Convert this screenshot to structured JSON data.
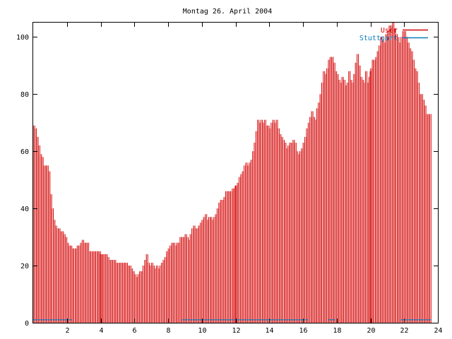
{
  "chart_data": {
    "type": "bar",
    "title": "Montag 26. April 2004",
    "xlabel": "",
    "ylabel": "",
    "xlim": [
      0,
      24
    ],
    "ylim": [
      0,
      105
    ],
    "x_ticks": [
      2,
      4,
      6,
      8,
      10,
      12,
      14,
      16,
      18,
      20,
      22,
      24
    ],
    "y_ticks": [
      0,
      20,
      40,
      60,
      80,
      100
    ],
    "grid": false,
    "legend_position": "top-right",
    "colors": {
      "users": "#d40000",
      "stuttgart": "#0a7bbd"
    },
    "series": [
      {
        "name": "User",
        "style": "impulses",
        "points": [
          [
            0.05,
            69
          ],
          [
            0.15,
            68
          ],
          [
            0.25,
            65
          ],
          [
            0.35,
            62
          ],
          [
            0.45,
            59
          ],
          [
            0.55,
            58
          ],
          [
            0.65,
            55
          ],
          [
            0.75,
            55
          ],
          [
            0.85,
            55
          ],
          [
            0.95,
            53
          ],
          [
            1.05,
            45
          ],
          [
            1.15,
            40
          ],
          [
            1.25,
            36
          ],
          [
            1.35,
            34
          ],
          [
            1.45,
            33
          ],
          [
            1.55,
            33
          ],
          [
            1.65,
            32
          ],
          [
            1.75,
            32
          ],
          [
            1.85,
            31
          ],
          [
            1.95,
            30
          ],
          [
            2.05,
            28
          ],
          [
            2.15,
            27
          ],
          [
            2.25,
            27
          ],
          [
            2.35,
            26
          ],
          [
            2.45,
            26
          ],
          [
            2.55,
            26
          ],
          [
            2.65,
            27
          ],
          [
            2.75,
            27
          ],
          [
            2.85,
            28
          ],
          [
            2.95,
            29
          ],
          [
            3.05,
            28
          ],
          [
            3.15,
            28
          ],
          [
            3.25,
            28
          ],
          [
            3.35,
            25
          ],
          [
            3.45,
            25
          ],
          [
            3.55,
            25
          ],
          [
            3.65,
            25
          ],
          [
            3.75,
            25
          ],
          [
            3.85,
            25
          ],
          [
            3.95,
            25
          ],
          [
            4.05,
            24
          ],
          [
            4.15,
            24
          ],
          [
            4.25,
            24
          ],
          [
            4.35,
            24
          ],
          [
            4.45,
            23
          ],
          [
            4.55,
            22
          ],
          [
            4.65,
            22
          ],
          [
            4.75,
            22
          ],
          [
            4.85,
            22
          ],
          [
            4.95,
            21
          ],
          [
            5.05,
            21
          ],
          [
            5.15,
            21
          ],
          [
            5.25,
            21
          ],
          [
            5.35,
            21
          ],
          [
            5.45,
            21
          ],
          [
            5.55,
            21
          ],
          [
            5.65,
            20
          ],
          [
            5.75,
            20
          ],
          [
            5.85,
            19
          ],
          [
            5.95,
            18
          ],
          [
            6.05,
            17
          ],
          [
            6.15,
            16
          ],
          [
            6.25,
            17
          ],
          [
            6.35,
            18
          ],
          [
            6.45,
            18
          ],
          [
            6.55,
            20
          ],
          [
            6.65,
            22
          ],
          [
            6.75,
            24
          ],
          [
            6.85,
            21
          ],
          [
            6.95,
            20
          ],
          [
            7.05,
            21
          ],
          [
            7.15,
            20
          ],
          [
            7.25,
            19
          ],
          [
            7.35,
            20
          ],
          [
            7.45,
            19
          ],
          [
            7.55,
            20
          ],
          [
            7.65,
            21
          ],
          [
            7.75,
            22
          ],
          [
            7.85,
            23
          ],
          [
            7.95,
            25
          ],
          [
            8.05,
            26
          ],
          [
            8.15,
            27
          ],
          [
            8.25,
            28
          ],
          [
            8.35,
            28
          ],
          [
            8.45,
            27
          ],
          [
            8.55,
            28
          ],
          [
            8.65,
            28
          ],
          [
            8.75,
            30
          ],
          [
            8.85,
            30
          ],
          [
            8.95,
            30
          ],
          [
            9.05,
            31
          ],
          [
            9.15,
            30
          ],
          [
            9.25,
            29
          ],
          [
            9.35,
            31
          ],
          [
            9.45,
            33
          ],
          [
            9.55,
            34
          ],
          [
            9.65,
            33
          ],
          [
            9.75,
            33
          ],
          [
            9.85,
            34
          ],
          [
            9.95,
            35
          ],
          [
            10.05,
            36
          ],
          [
            10.15,
            37
          ],
          [
            10.25,
            38
          ],
          [
            10.35,
            36
          ],
          [
            10.45,
            37
          ],
          [
            10.55,
            37
          ],
          [
            10.65,
            36
          ],
          [
            10.75,
            37
          ],
          [
            10.85,
            38
          ],
          [
            10.95,
            40
          ],
          [
            11.05,
            42
          ],
          [
            11.15,
            43
          ],
          [
            11.25,
            43
          ],
          [
            11.35,
            44
          ],
          [
            11.45,
            46
          ],
          [
            11.55,
            46
          ],
          [
            11.65,
            46
          ],
          [
            11.75,
            46
          ],
          [
            11.85,
            47
          ],
          [
            11.95,
            47
          ],
          [
            12.05,
            48
          ],
          [
            12.15,
            49
          ],
          [
            12.25,
            51
          ],
          [
            12.35,
            52
          ],
          [
            12.45,
            53
          ],
          [
            12.55,
            55
          ],
          [
            12.65,
            56
          ],
          [
            12.75,
            55
          ],
          [
            12.85,
            56
          ],
          [
            12.95,
            57
          ],
          [
            13.05,
            60
          ],
          [
            13.15,
            63
          ],
          [
            13.25,
            67
          ],
          [
            13.35,
            71
          ],
          [
            13.45,
            70
          ],
          [
            13.55,
            71
          ],
          [
            13.65,
            70
          ],
          [
            13.75,
            71
          ],
          [
            13.85,
            69
          ],
          [
            13.95,
            69
          ],
          [
            14.05,
            68
          ],
          [
            14.15,
            70
          ],
          [
            14.25,
            71
          ],
          [
            14.35,
            70
          ],
          [
            14.45,
            71
          ],
          [
            14.55,
            68
          ],
          [
            14.65,
            66
          ],
          [
            14.75,
            65
          ],
          [
            14.85,
            64
          ],
          [
            14.95,
            63
          ],
          [
            15.05,
            61
          ],
          [
            15.15,
            62
          ],
          [
            15.25,
            63
          ],
          [
            15.35,
            63
          ],
          [
            15.45,
            64
          ],
          [
            15.55,
            63
          ],
          [
            15.65,
            60
          ],
          [
            15.75,
            59
          ],
          [
            15.85,
            60
          ],
          [
            15.95,
            61
          ],
          [
            16.05,
            63
          ],
          [
            16.15,
            65
          ],
          [
            16.25,
            68
          ],
          [
            16.35,
            70
          ],
          [
            16.45,
            72
          ],
          [
            16.55,
            74
          ],
          [
            16.65,
            72
          ],
          [
            16.75,
            71
          ],
          [
            16.85,
            75
          ],
          [
            16.95,
            77
          ],
          [
            17.05,
            80
          ],
          [
            17.15,
            84
          ],
          [
            17.25,
            88
          ],
          [
            17.35,
            87
          ],
          [
            17.45,
            89
          ],
          [
            17.55,
            92
          ],
          [
            17.65,
            93
          ],
          [
            17.75,
            93
          ],
          [
            17.85,
            91
          ],
          [
            17.95,
            88
          ],
          [
            18.05,
            87
          ],
          [
            18.15,
            85
          ],
          [
            18.25,
            84
          ],
          [
            18.35,
            86
          ],
          [
            18.45,
            85
          ],
          [
            18.55,
            83
          ],
          [
            18.65,
            84
          ],
          [
            18.75,
            88
          ],
          [
            18.85,
            85
          ],
          [
            18.95,
            84
          ],
          [
            19.05,
            87
          ],
          [
            19.15,
            91
          ],
          [
            19.25,
            94
          ],
          [
            19.35,
            90
          ],
          [
            19.45,
            86
          ],
          [
            19.55,
            85
          ],
          [
            19.65,
            84
          ],
          [
            19.75,
            88
          ],
          [
            19.85,
            84
          ],
          [
            19.95,
            86
          ],
          [
            20.05,
            89
          ],
          [
            20.15,
            92
          ],
          [
            20.25,
            92
          ],
          [
            20.35,
            93
          ],
          [
            20.45,
            95
          ],
          [
            20.55,
            97
          ],
          [
            20.65,
            100
          ],
          [
            20.75,
            99
          ],
          [
            20.85,
            98
          ],
          [
            20.95,
            101
          ],
          [
            21.05,
            102
          ],
          [
            21.15,
            104
          ],
          [
            21.25,
            104
          ],
          [
            21.35,
            105
          ],
          [
            21.45,
            103
          ],
          [
            21.55,
            101
          ],
          [
            21.65,
            100
          ],
          [
            21.75,
            98
          ],
          [
            21.85,
            100
          ],
          [
            21.95,
            102
          ],
          [
            22.05,
            102
          ],
          [
            22.15,
            100
          ],
          [
            22.25,
            98
          ],
          [
            22.35,
            96
          ],
          [
            22.45,
            95
          ],
          [
            22.55,
            92
          ],
          [
            22.65,
            89
          ],
          [
            22.75,
            88
          ],
          [
            22.85,
            84
          ],
          [
            22.95,
            80
          ],
          [
            23.05,
            80
          ],
          [
            23.15,
            78
          ],
          [
            23.25,
            76
          ],
          [
            23.35,
            73
          ],
          [
            23.45,
            73
          ],
          [
            23.55,
            73
          ]
        ],
        "spikes": [
          [
            4.0,
            24
          ],
          [
            12.0,
            48
          ],
          [
            20.0,
            88
          ]
        ]
      },
      {
        "name": "Stuttgart",
        "style": "impulses",
        "segments": [
          [
            0.0,
            2.3,
            0.8
          ],
          [
            8.8,
            16.3,
            0.8
          ],
          [
            17.5,
            17.9,
            0.8
          ],
          [
            21.8,
            23.6,
            0.8
          ]
        ]
      }
    ]
  }
}
